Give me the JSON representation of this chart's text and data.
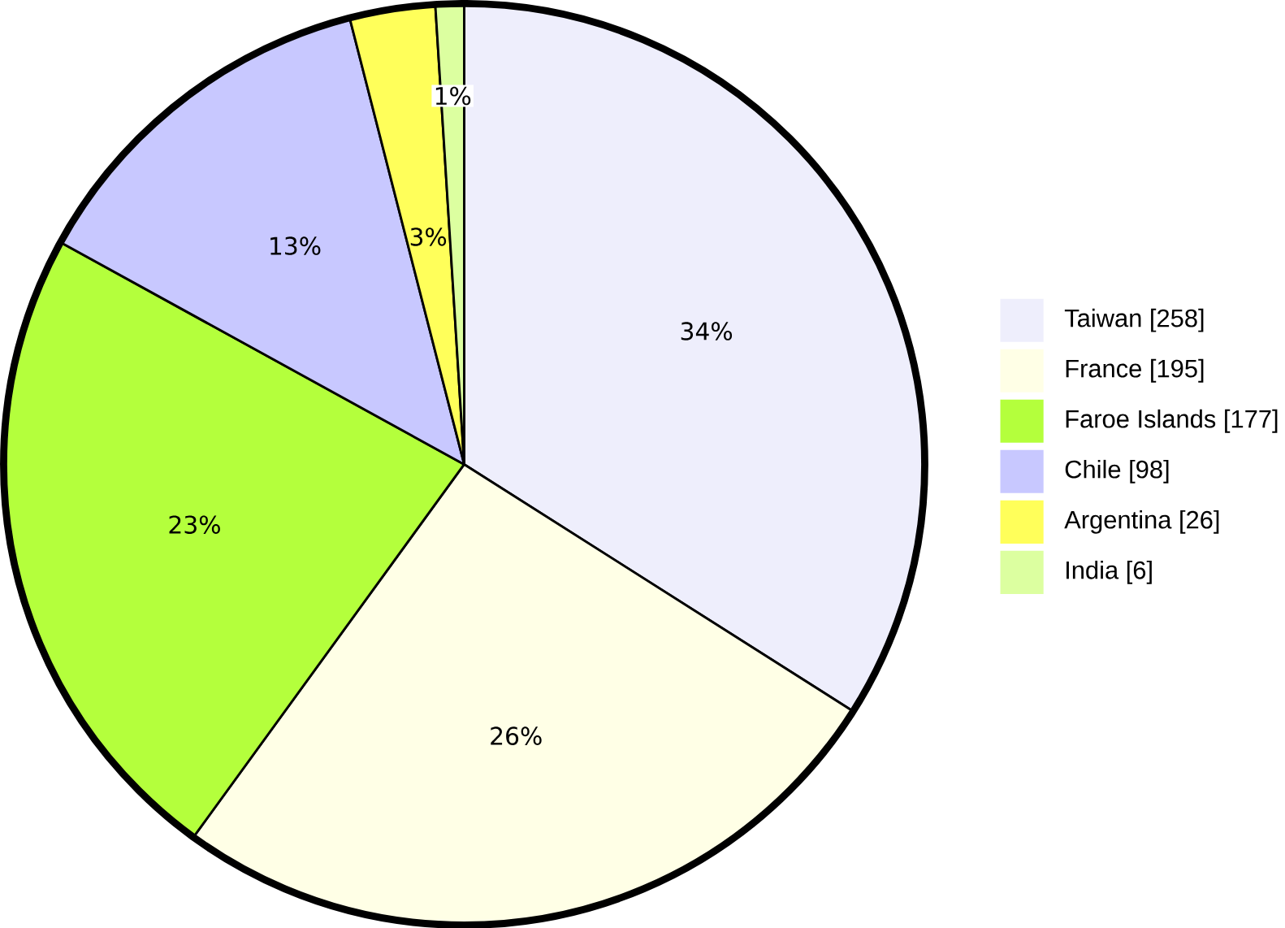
{
  "chart_data": {
    "type": "pie",
    "categories": [
      "Taiwan [258]",
      "France [195]",
      "Faroe Islands [177]",
      "Chile [98]",
      "Argentina [26]",
      "India [6]"
    ],
    "values": [
      34,
      26,
      23,
      13,
      3,
      1
    ],
    "value_labels": [
      "34%",
      "26%",
      "23%",
      "13%",
      "3%",
      "1%"
    ],
    "colors": [
      "#eeeefc",
      "#ffffe6",
      "#b4ff3c",
      "#c8c8ff",
      "#ffff5a",
      "#dcffa0"
    ],
    "legend": "right"
  }
}
